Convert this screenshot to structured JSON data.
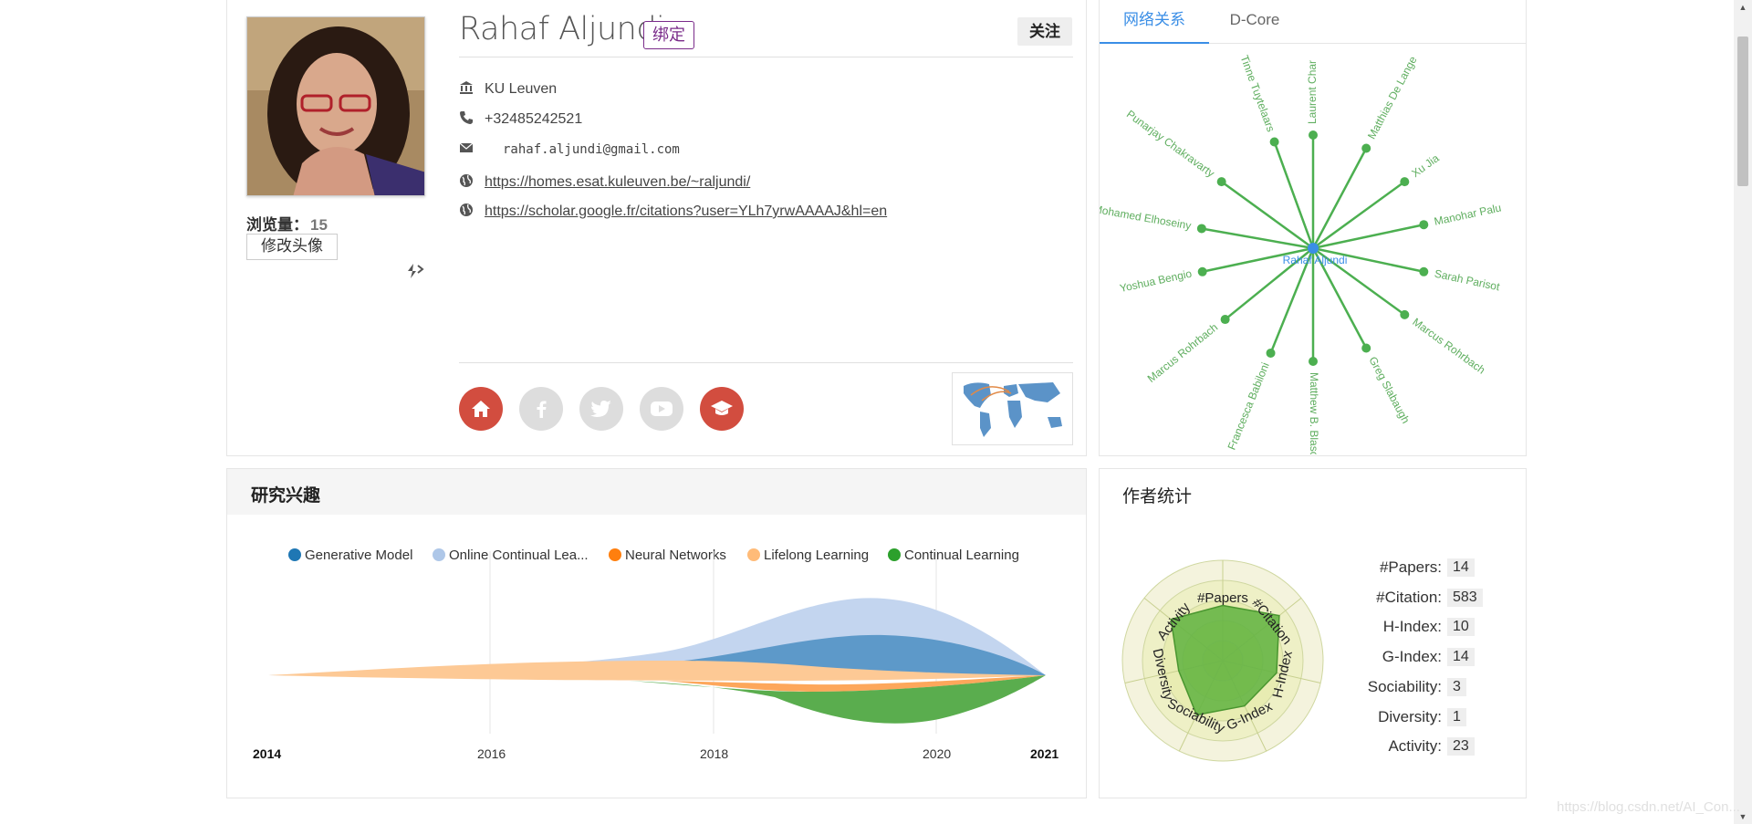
{
  "profile": {
    "name": "Rahaf Aljundi",
    "bind_label": "绑定",
    "follow_label": "关注",
    "views_label": "浏览量：",
    "views_count": "15",
    "edit_avatar_label": "修改头像",
    "affiliation": "KU Leuven",
    "phone": "+32485242521",
    "email": "rahaf.aljundi@gmail.com",
    "homepage": "https://homes.esat.kuleuven.be/~raljundi/",
    "scholar": "https://scholar.google.fr/citations?user=YLh7yrwAAAAJ&hl=en",
    "social_icons": [
      "home-icon",
      "facebook-icon",
      "twitter-icon",
      "youtube-icon",
      "graduation-cap-icon"
    ]
  },
  "network": {
    "tabs": [
      "网络关系",
      "D-Core"
    ],
    "active_tab": 0,
    "center": "Rahaf Aljundi",
    "nodes": [
      {
        "name": "Laurent Char",
        "angle": -90
      },
      {
        "name": "Matthias De Lange",
        "angle": -62
      },
      {
        "name": "Xu Jia",
        "angle": -36
      },
      {
        "name": "Manohar Palu",
        "angle": -12
      },
      {
        "name": "Sarah Parisot",
        "angle": 12
      },
      {
        "name": "Marcus Rohrbach",
        "angle": 36
      },
      {
        "name": "Greg Slabaugh",
        "angle": 62
      },
      {
        "name": "Matthew B. Blaschko",
        "angle": 90
      },
      {
        "name": "Francesca Babiloni",
        "angle": 112
      },
      {
        "name": "Marcus Rohrbach",
        "angle": 141
      },
      {
        "name": "Yoshua Bengio",
        "angle": 168
      },
      {
        "name": "Mohamed Elhoseiny",
        "angle": 190
      },
      {
        "name": "Punarjay Chakravarty",
        "angle": 216
      },
      {
        "name": "Tinne Tuytelaars",
        "angle": 250
      }
    ],
    "colors": {
      "link": "#4caf50",
      "label": "#5fae5f",
      "center": "#3a8ee6"
    }
  },
  "interests": {
    "title": "研究兴趣",
    "legend": [
      {
        "label": "Generative Model",
        "color": "#1f77b4"
      },
      {
        "label": "Online Continual Lea...",
        "color": "#aec7e8"
      },
      {
        "label": "Neural Networks",
        "color": "#ff7f0e"
      },
      {
        "label": "Lifelong Learning",
        "color": "#ffbb78"
      },
      {
        "label": "Continual Learning",
        "color": "#2ca02c"
      }
    ],
    "chart_data": {
      "type": "area",
      "x": [
        2014,
        2016,
        2018,
        2020,
        2021
      ],
      "tick_labels": [
        "2014",
        "2016",
        "2018",
        "2020",
        "2021"
      ]
    }
  },
  "stats": {
    "title": "作者统计",
    "radar_axes": [
      "#Papers",
      "#Citation",
      "H-Index",
      "G-Index",
      "Sociability",
      "Diversity",
      "Activity"
    ],
    "rows": [
      {
        "label": "#Papers:",
        "value": "14"
      },
      {
        "label": "#Citation:",
        "value": "583"
      },
      {
        "label": "H-Index:",
        "value": "10"
      },
      {
        "label": "G-Index:",
        "value": "14"
      },
      {
        "label": "Sociability:",
        "value": "3"
      },
      {
        "label": "Diversity:",
        "value": "1"
      },
      {
        "label": "Activity:",
        "value": "23"
      }
    ]
  },
  "watermark": "https://blog.csdn.net/AI_Con..."
}
